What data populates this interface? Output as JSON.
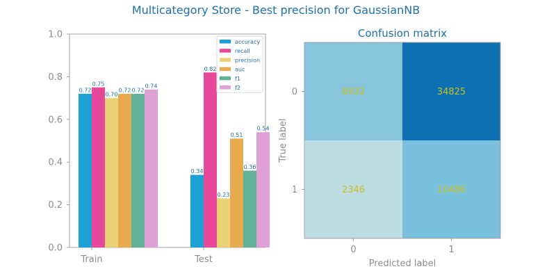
{
  "title": "Multicategory Store - Best precision for GaussianNB",
  "colors": {
    "accuracy": "#1ba1d6",
    "recall": "#e8489a",
    "precision": "#ecd276",
    "auc": "#e9aa4d",
    "f1": "#63b09a",
    "f2": "#dea0d6",
    "title": "#1f6fa8",
    "axis": "#8c8c8c",
    "cell_text": "#c8c020"
  },
  "chart_data": [
    {
      "type": "bar",
      "title": "",
      "categories": [
        "Train",
        "Test"
      ],
      "ylim": [
        0,
        1.0
      ],
      "yticks": [
        "0.0",
        "0.2",
        "0.4",
        "0.6",
        "0.8",
        "1.0"
      ],
      "legend_position": "top-right",
      "series": [
        {
          "name": "accuracy",
          "values": [
            0.72,
            0.34
          ],
          "labels": [
            "0.72",
            "0.34"
          ]
        },
        {
          "name": "recall",
          "values": [
            0.75,
            0.82
          ],
          "labels": [
            "0.75",
            "0.82"
          ]
        },
        {
          "name": "precision",
          "values": [
            0.7,
            0.23
          ],
          "labels": [
            "0.70",
            "0.23"
          ]
        },
        {
          "name": "auc",
          "values": [
            0.72,
            0.51
          ],
          "labels": [
            "0.72",
            "0.51"
          ]
        },
        {
          "name": "f1",
          "values": [
            0.72,
            0.36
          ],
          "labels": [
            "0.72",
            "0.36"
          ]
        },
        {
          "name": "f2",
          "values": [
            0.74,
            0.54
          ],
          "labels": [
            "0.74",
            "0.54"
          ]
        }
      ]
    },
    {
      "type": "heatmap",
      "title": "Confusion matrix",
      "xlabel": "Predicted label",
      "ylabel": "True label",
      "x_categories": [
        "0",
        "1"
      ],
      "y_categories": [
        "0",
        "1"
      ],
      "values": [
        [
          8932,
          34825
        ],
        [
          2346,
          10486
        ]
      ],
      "labels": [
        [
          "8932",
          "34825"
        ],
        [
          "2346",
          "10486"
        ]
      ]
    }
  ]
}
